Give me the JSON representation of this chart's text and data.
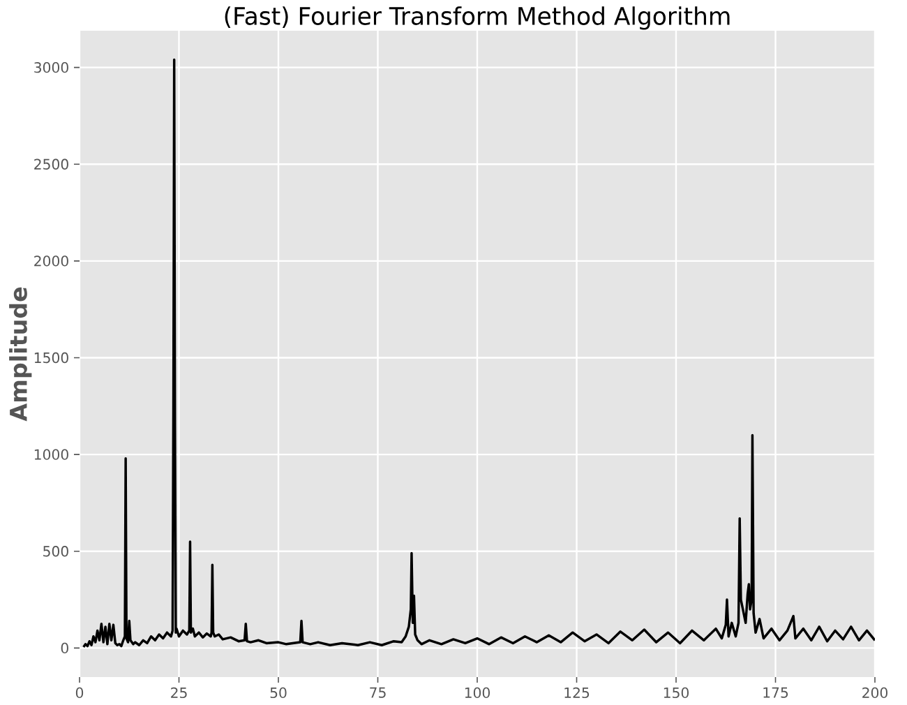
{
  "chart_data": {
    "type": "line",
    "title": "(Fast) Fourier Transform Method Algorithm",
    "ylabel": "Amplitude",
    "color": "#000000",
    "grid": true,
    "xlim": [
      0,
      200
    ],
    "ylim": [
      -150,
      3190
    ],
    "xticks": [
      0,
      25,
      50,
      75,
      100,
      125,
      150,
      175,
      200
    ],
    "yticks": [
      0,
      500,
      1000,
      1500,
      2000,
      2500,
      3000
    ],
    "x": [
      1,
      1.5,
      2,
      2.5,
      3,
      3.5,
      4,
      4.5,
      5,
      5.5,
      6,
      6.5,
      7,
      7.5,
      8,
      8.5,
      9,
      9.5,
      10,
      10.5,
      11,
      11.4,
      11.6,
      11.8,
      12.2,
      12.5,
      12.8,
      13.5,
      14,
      15,
      16,
      17,
      18,
      19,
      20,
      21,
      22,
      23,
      23.4,
      23.6,
      23.8,
      24.0,
      24.2,
      24.4,
      25,
      26,
      27,
      27.6,
      27.8,
      28.0,
      28.5,
      29,
      30,
      31,
      32,
      33,
      33.2,
      33.4,
      33.6,
      34,
      35,
      36,
      38,
      40,
      41.5,
      41.8,
      42.1,
      43,
      45,
      47,
      50,
      52,
      55.5,
      55.8,
      56.1,
      58,
      60,
      63,
      66,
      70,
      73,
      76,
      79,
      81,
      82,
      82.8,
      83.3,
      83.5,
      83.8,
      84.1,
      84.4,
      85,
      86,
      88,
      91,
      94,
      97,
      100,
      103,
      106,
      109,
      112,
      115,
      118,
      121,
      124,
      127,
      130,
      133,
      136,
      139,
      142,
      145,
      148,
      151,
      154,
      157,
      160,
      161.5,
      162.5,
      162.8,
      163.2,
      164,
      165,
      165.7,
      166,
      166.3,
      166.8,
      167.5,
      168,
      168.3,
      168.6,
      169,
      169.2,
      169.5,
      170,
      171,
      172,
      174,
      176,
      178,
      179.5,
      180,
      182,
      184,
      186,
      188,
      190,
      192,
      194,
      196,
      198,
      200
    ],
    "values": [
      5,
      20,
      10,
      35,
      15,
      60,
      30,
      90,
      40,
      125,
      30,
      110,
      20,
      125,
      40,
      120,
      25,
      15,
      20,
      10,
      40,
      60,
      980,
      50,
      30,
      140,
      40,
      20,
      30,
      15,
      40,
      25,
      60,
      40,
      70,
      50,
      80,
      60,
      90,
      1230,
      3040,
      1150,
      80,
      100,
      60,
      90,
      70,
      90,
      550,
      80,
      100,
      60,
      80,
      55,
      75,
      60,
      80,
      430,
      80,
      60,
      70,
      45,
      55,
      35,
      40,
      125,
      35,
      30,
      40,
      25,
      30,
      20,
      30,
      140,
      30,
      20,
      30,
      15,
      25,
      15,
      30,
      15,
      35,
      30,
      60,
      110,
      200,
      490,
      130,
      270,
      70,
      40,
      20,
      40,
      20,
      45,
      25,
      50,
      20,
      55,
      25,
      60,
      30,
      65,
      30,
      80,
      35,
      70,
      25,
      85,
      40,
      95,
      30,
      80,
      25,
      90,
      40,
      100,
      50,
      120,
      250,
      60,
      130,
      60,
      130,
      670,
      250,
      200,
      130,
      280,
      330,
      200,
      250,
      1100,
      180,
      80,
      150,
      50,
      100,
      40,
      90,
      165,
      50,
      100,
      40,
      110,
      35,
      90,
      45,
      110,
      40,
      90,
      40
    ]
  }
}
